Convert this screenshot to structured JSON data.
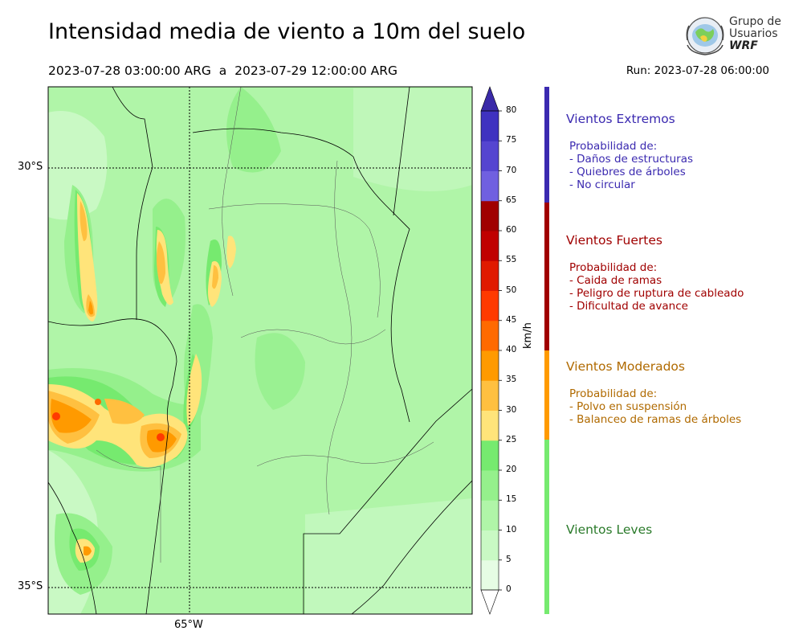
{
  "header": {
    "title": "Intensidad media de viento a 10m del suelo",
    "period": "2023-07-28 03:00:00 ARG  a  2023-07-29 12:00:00 ARG",
    "run": "Run: 2023-07-28 06:00:00"
  },
  "logo": {
    "line1": "Grupo de",
    "line2": "Usuarios",
    "line3": "WRF"
  },
  "map": {
    "lat_labels": [
      "30°S",
      "35°S"
    ],
    "lon_labels": [
      "65°W"
    ]
  },
  "colorbar": {
    "unit": "km/h",
    "ticks": [
      "0",
      "5",
      "10",
      "15",
      "20",
      "25",
      "30",
      "35",
      "40",
      "45",
      "50",
      "55",
      "60",
      "65",
      "70",
      "75",
      "80"
    ],
    "levels": [
      0,
      5,
      10,
      15,
      20,
      25,
      30,
      35,
      40,
      45,
      50,
      55,
      60,
      65,
      70,
      75,
      80
    ],
    "colors": [
      "#e6fde4",
      "#c9f9c4",
      "#b0f5a8",
      "#95f08c",
      "#76ea6f",
      "#ffe47a",
      "#ffc040",
      "#ff9a00",
      "#ff6a00",
      "#ff3a00",
      "#e01a00",
      "#c00000",
      "#a00000",
      "#7060e0",
      "#5545d0",
      "#3f32c0"
    ],
    "under_color": "#ffffff",
    "over_color": "#3a2aa8"
  },
  "categories": [
    {
      "title": "Vientos Extremos",
      "color": "#3b2ab0",
      "prob": "Probabilidad de:",
      "items": [
        "- Daños de estructuras",
        "- Quiebres de árboles",
        "- No circular"
      ]
    },
    {
      "title": "Vientos Fuertes",
      "color": "#a00000",
      "prob": "Probabilidad de:",
      "items": [
        "- Caida de ramas",
        "- Peligro de ruptura de cableado",
        "- Dificultad de avance"
      ]
    },
    {
      "title": "Vientos Moderados",
      "color": "#b06a00",
      "prob": "Probabilidad de:",
      "items": [
        "- Polvo en suspensión",
        "- Balanceo de ramas de árboles"
      ]
    },
    {
      "title": "Vientos Leves",
      "color": "#2a7a2a",
      "prob": "",
      "items": []
    }
  ],
  "side_bar_colors": [
    "#3b2ab0",
    "#a00000",
    "#ff9a00",
    "#76ea6f"
  ]
}
